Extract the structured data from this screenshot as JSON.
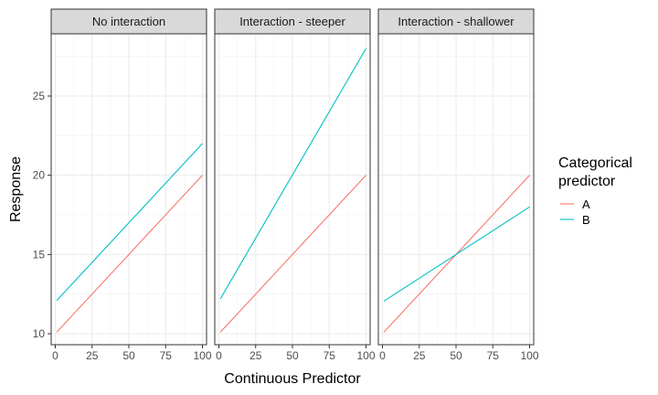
{
  "chart_data": {
    "type": "line",
    "xlabel": "Continuous Predictor",
    "ylabel": "Response",
    "xlim": [
      0,
      100
    ],
    "ylim": [
      10,
      28
    ],
    "x_ticks": [
      0,
      25,
      50,
      75,
      100
    ],
    "y_ticks": [
      10,
      15,
      20,
      25
    ],
    "x_tick_labels": [
      "0",
      "25",
      "50",
      "75",
      "100"
    ],
    "y_tick_labels": [
      "10",
      "15",
      "20",
      "25"
    ],
    "grid": true,
    "legend": {
      "title_lines": [
        "Categorical",
        "predictor"
      ],
      "placement": "right",
      "entries": [
        {
          "name": "A",
          "color": "#F8766D"
        },
        {
          "name": "B",
          "color": "#00BFC4"
        }
      ]
    },
    "panels": [
      {
        "title": "No interaction",
        "series": [
          {
            "name": "A",
            "x": [
              1,
              100
            ],
            "y": [
              10.1,
              20.0
            ]
          },
          {
            "name": "B",
            "x": [
              1,
              100
            ],
            "y": [
              12.1,
              22.0
            ]
          }
        ]
      },
      {
        "title": "Interaction - steeper",
        "series": [
          {
            "name": "A",
            "x": [
              1,
              100
            ],
            "y": [
              10.1,
              20.0
            ]
          },
          {
            "name": "B",
            "x": [
              1,
              100
            ],
            "y": [
              12.2,
              28.0
            ]
          }
        ]
      },
      {
        "title": "Interaction - shallower",
        "series": [
          {
            "name": "A",
            "x": [
              1,
              100
            ],
            "y": [
              10.1,
              20.0
            ]
          },
          {
            "name": "B",
            "x": [
              1,
              100
            ],
            "y": [
              12.06,
              18.0
            ]
          }
        ]
      }
    ]
  }
}
